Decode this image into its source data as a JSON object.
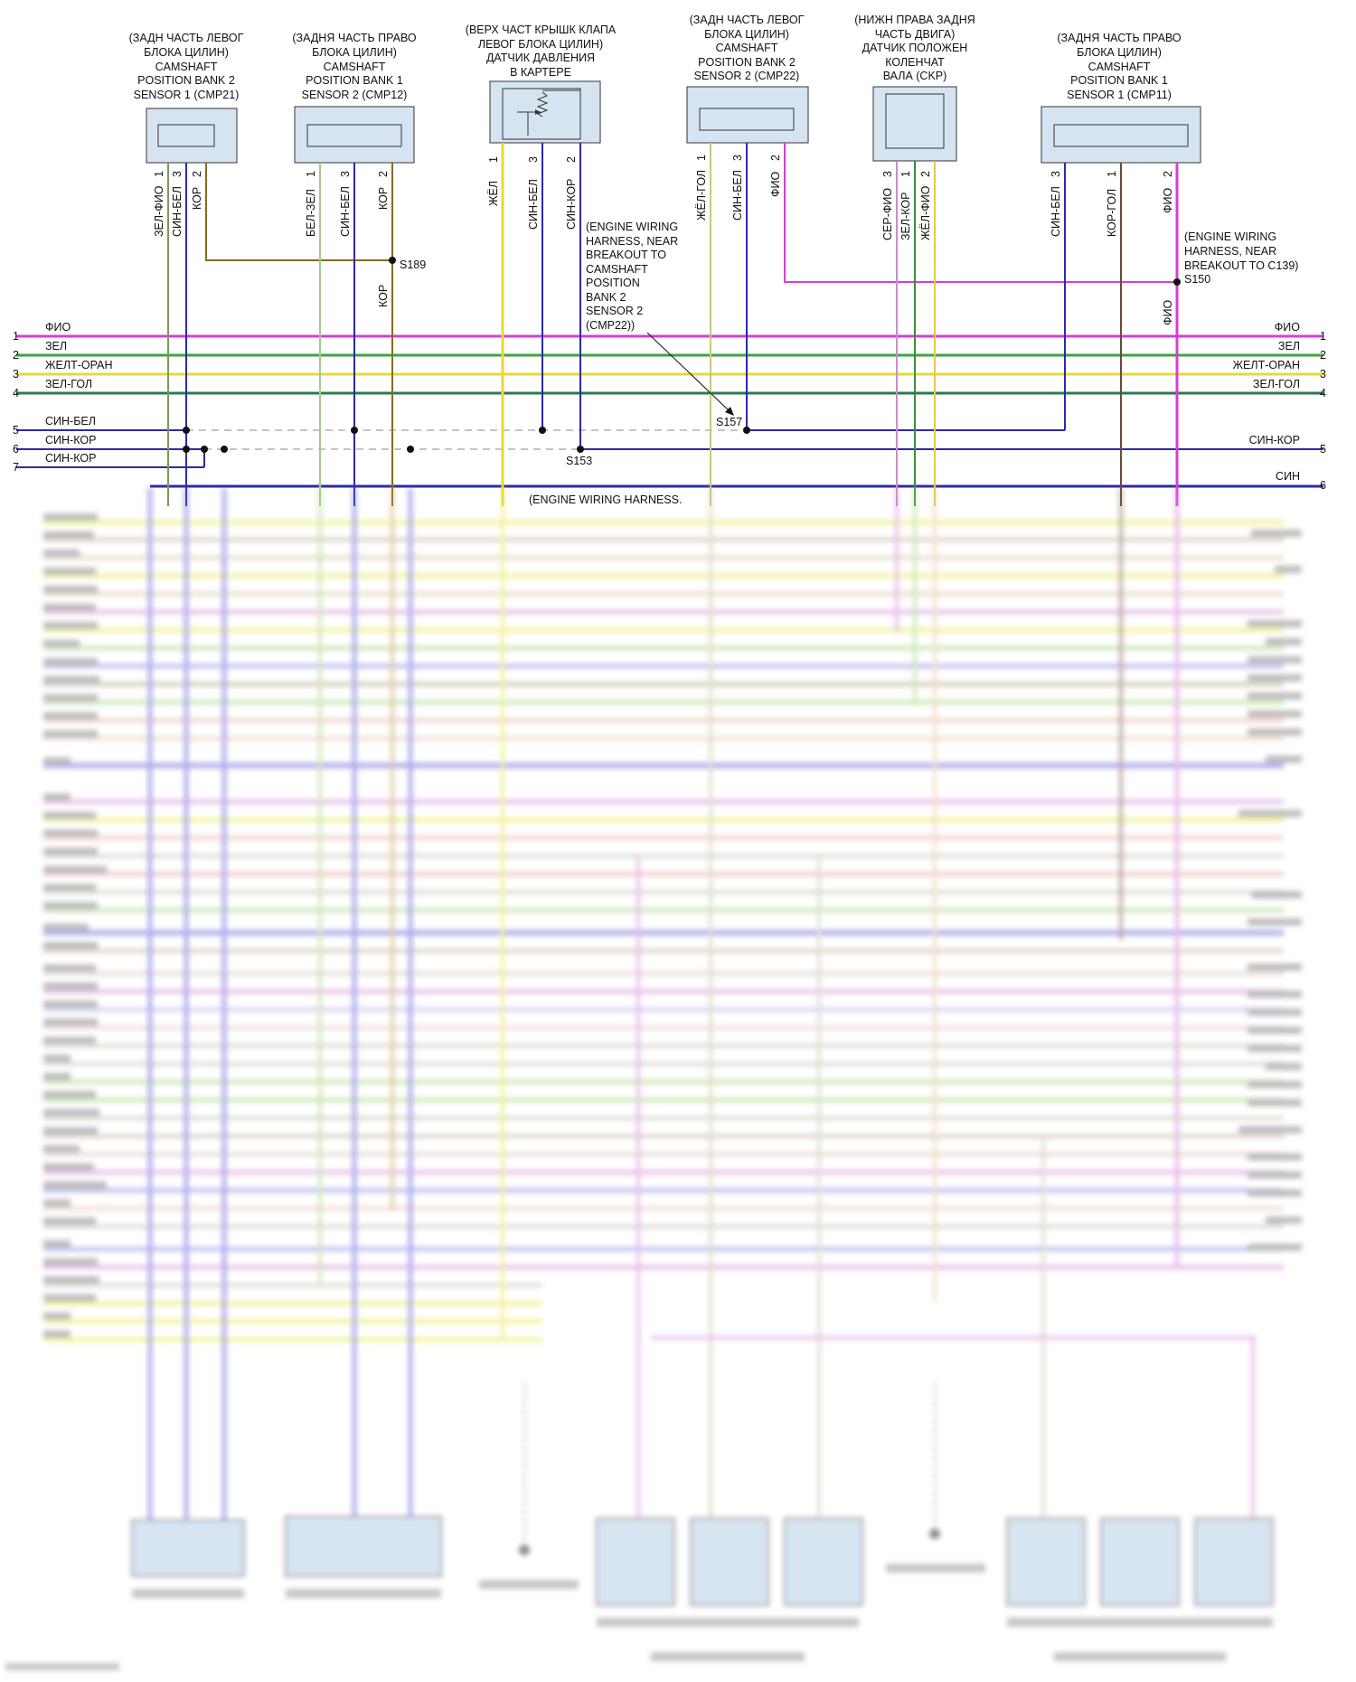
{
  "components": [
    {
      "title": [
        "(ЗАДН ЧАСТЬ ЛЕВОГ",
        "БЛОКА ЦИЛИН)",
        "CAMSHAFT",
        "POSITION BANK 2",
        "SENSOR 1 (CMP21)"
      ],
      "pins": [
        "1",
        "3",
        "2"
      ],
      "wires": [
        "ЗЕЛ-ФИО",
        "СИН-БЕЛ",
        "КОР"
      ]
    },
    {
      "title": [
        "(ЗАДНЯ ЧАСТЬ ПРАВО",
        "БЛОКА ЦИЛИН)",
        "CAMSHAFT",
        "POSITION BANK 1",
        "SENSOR 2 (CMP12)"
      ],
      "pins": [
        "1",
        "3",
        "2"
      ],
      "wires": [
        "БЕЛ-ЗЕЛ",
        "СИН-БЕЛ",
        "КОР"
      ]
    },
    {
      "title": [
        "(ВЕРХ ЧАСТ КРЫШК КЛАПА",
        "ЛЕВОГ БЛОКА ЦИЛИН)",
        "ДАТЧИК ДАВЛЕНИЯ",
        "В КАРТЕРЕ"
      ],
      "pins": [
        "1",
        "3",
        "2"
      ],
      "wires": [
        "ЖЁЛ",
        "СИН-БЕЛ",
        "СИН-КОР"
      ]
    },
    {
      "title": [
        "(ЗАДН ЧАСТЬ ЛЕВОГ",
        "БЛОКА ЦИЛИН)",
        "CAMSHAFT",
        "POSITION BANK 2",
        "SENSOR 2 (CMP22)"
      ],
      "pins": [
        "1",
        "3",
        "2"
      ],
      "wires": [
        "ЖЁЛ-ГОЛ",
        "СИН-БЕЛ",
        "ФИО"
      ]
    },
    {
      "title": [
        "(НИЖН ПРАВА ЗАДНЯ",
        "ЧАСТЬ ДВИГА)",
        "ДАТЧИК ПОЛОЖЕН",
        "КОЛЕНЧАТ",
        "ВАЛА (CKP)"
      ],
      "pins": [
        "3",
        "1",
        "2"
      ],
      "wires": [
        "СЕР-ФИО",
        "ЗЕЛ-КОР",
        "ЖЁЛ-ФИО"
      ]
    },
    {
      "title": [
        "(ЗАДНЯ ЧАСТЬ ПРАВО",
        "БЛОКА ЦИЛИН)",
        "CAMSHAFT",
        "POSITION BANK 1",
        "SENSOR 1 (CMP11)"
      ],
      "pins": [
        "3",
        "1",
        "2"
      ],
      "wires": [
        "СИН-БЕЛ",
        "КОР-ГОЛ",
        "ФИО"
      ]
    }
  ],
  "splices": {
    "s189": {
      "id": "S189",
      "wire": "КОР"
    },
    "s150": {
      "id": "S150",
      "wire": "ФИО",
      "note": [
        "(ENGINE WIRING",
        "HARNESS, NEAR",
        "BREAKOUT TO C139)"
      ]
    },
    "s157": {
      "id": "S157",
      "note": [
        "(ENGINE WIRING",
        "HARNESS, NEAR",
        "BREAKOUT TO",
        "CAMSHAFT",
        "POSITION",
        "BANK 2",
        "SENSOR 2",
        "(CMP22))"
      ]
    },
    "s153": {
      "id": "S153",
      "note": "(ENGINE WIRING HARNESS."
    }
  },
  "left_rows": [
    {
      "num": "1",
      "label": "ФИО",
      "color": "#d63fd6"
    },
    {
      "num": "2",
      "label": "ЗЕЛ",
      "color": "#3fa33f"
    },
    {
      "num": "3",
      "label": "ЖЕЛТ-ОРАН",
      "color": "#e8d83a"
    },
    {
      "num": "4",
      "label": "ЗЕЛ-ГОЛ",
      "color": "#2f7a4a"
    },
    {
      "num": "5",
      "label": "СИН-БЕЛ",
      "color": "#2a2aa8"
    },
    {
      "num": "6",
      "label": "СИН-КОР",
      "color": "#2a2aa8"
    },
    {
      "num": "7",
      "label": "СИН-КОР",
      "color": "#2a2aa8"
    }
  ],
  "right_rows": [
    {
      "num": "1",
      "label": "ФИО"
    },
    {
      "num": "2",
      "label": "ЗЕЛ"
    },
    {
      "num": "3",
      "label": "ЖЕЛТ-ОРАН"
    },
    {
      "num": "4",
      "label": "ЗЕЛ-ГОЛ"
    },
    {
      "num": "5",
      "label": "СИН-КОР"
    },
    {
      "num": "6",
      "label": "СИН"
    }
  ]
}
